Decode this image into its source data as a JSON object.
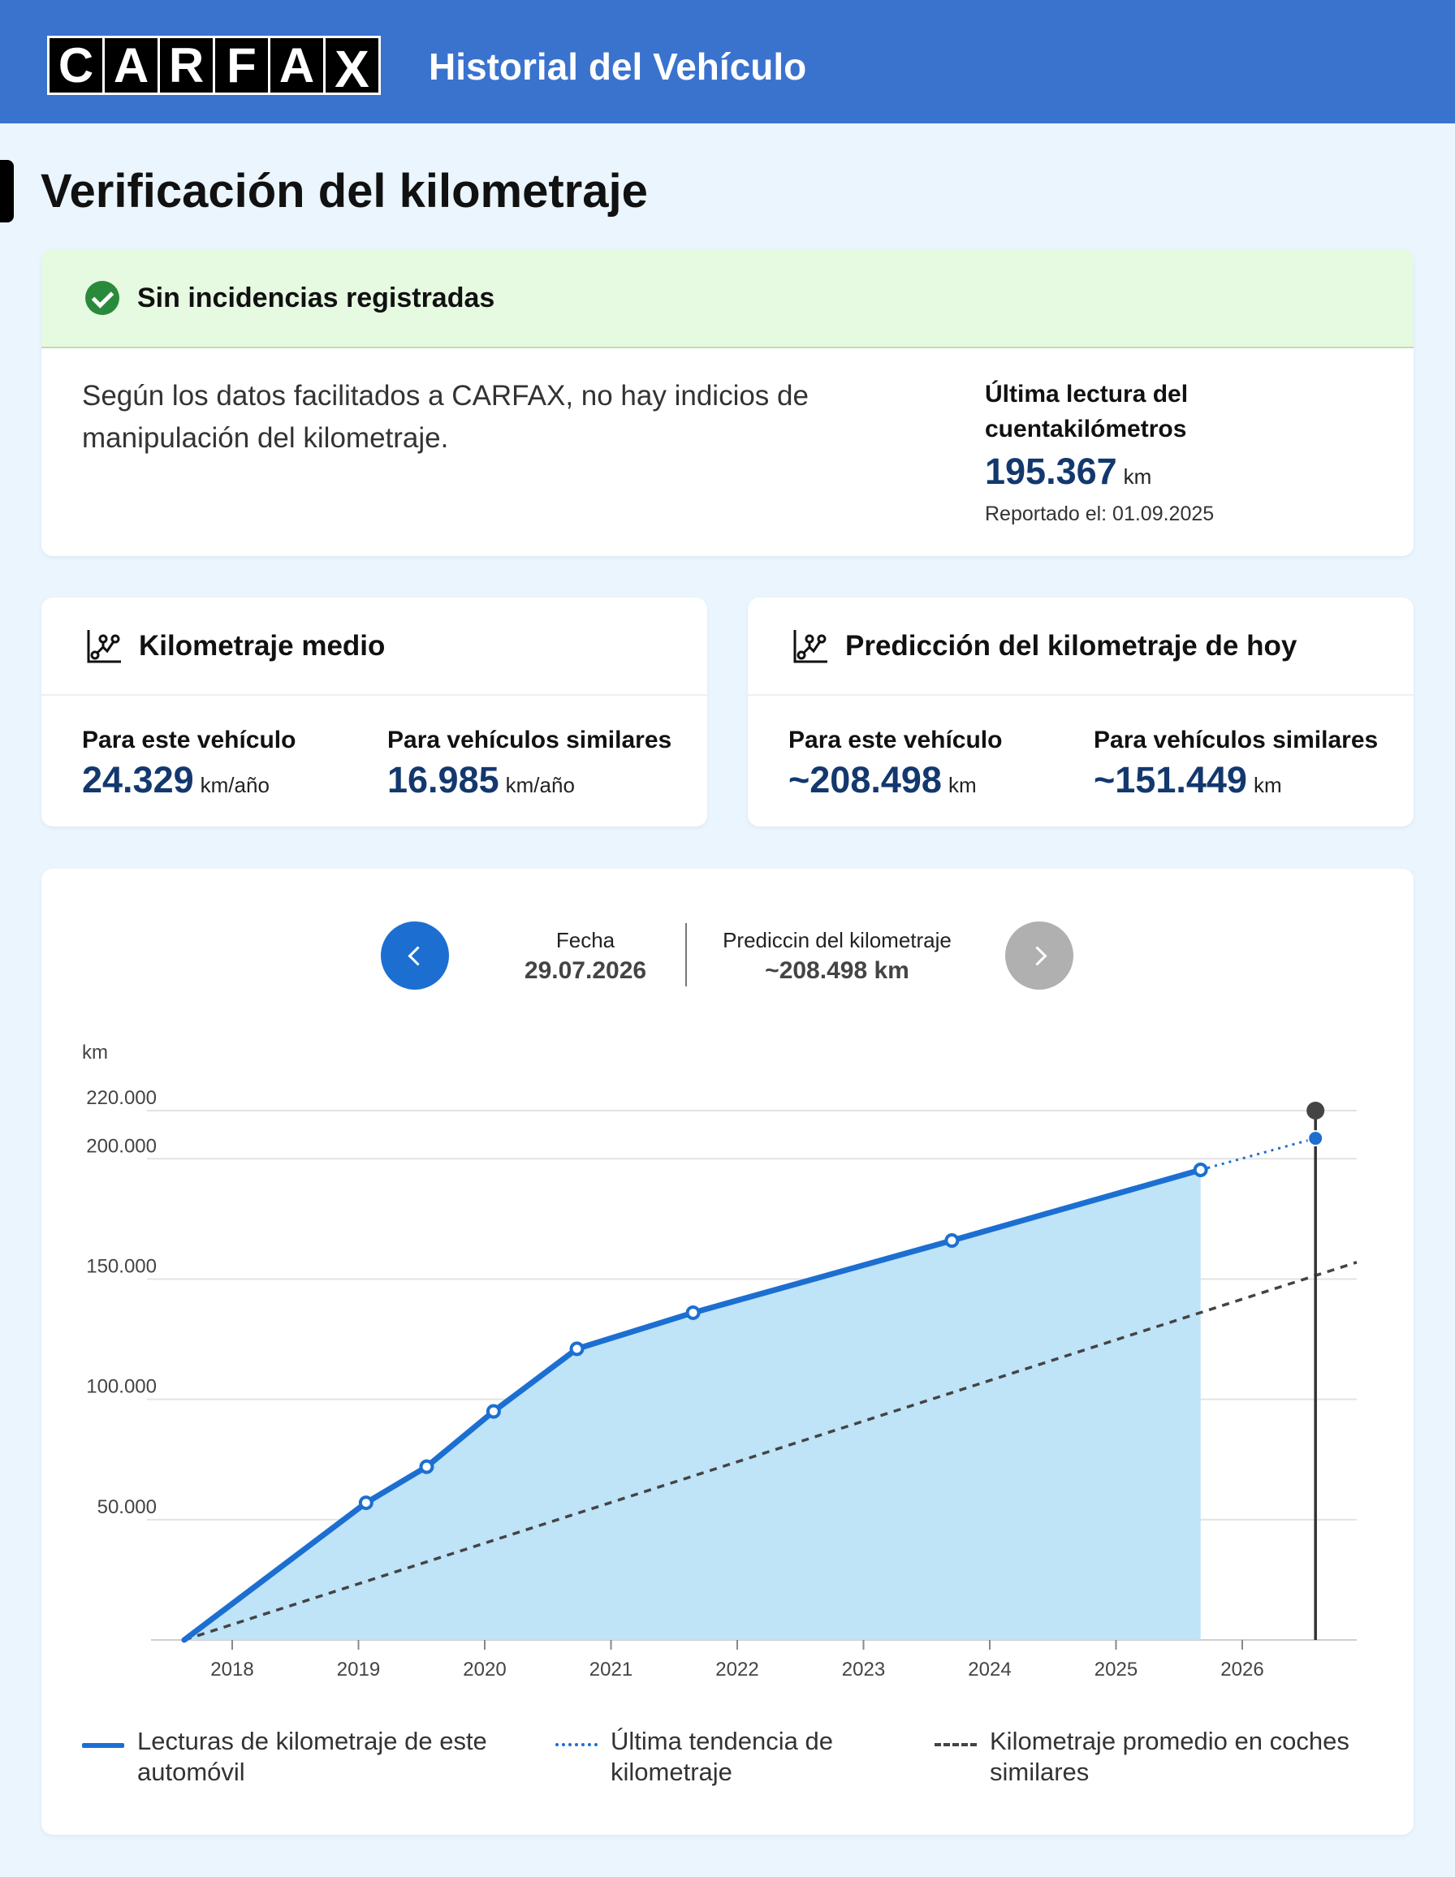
{
  "header": {
    "logo_letters": [
      "C",
      "A",
      "R",
      "F",
      "A",
      "X"
    ],
    "app_title": "Historial del Vehículo",
    "brand_color": "#3a73ce"
  },
  "page_title": "Verificación del kilometraje",
  "status": {
    "title": "Sin incidencias registradas",
    "icon": "check-circle-icon",
    "message": "Según los datos facilitados a CARFAX, no hay indicios de manipulación del kilometraje.",
    "last_reading_label": "Última lectura del cuentakilómetros",
    "last_reading_value": "195.367",
    "last_reading_unit": "km",
    "reported": "Reportado el: 01.09.2025"
  },
  "average": {
    "title": "Kilometraje medio",
    "icon": "mileage-graph-icon",
    "this_label": "Para este vehículo",
    "this_value": "24.329",
    "this_unit": "km/año",
    "similar_label": "Para vehículos similares",
    "similar_value": "16.985",
    "similar_unit": "km/año"
  },
  "prediction": {
    "title": "Predicción del kilometraje de hoy",
    "icon": "mileage-graph-icon",
    "this_label": "Para este vehículo",
    "this_value": "~208.498",
    "this_unit": "km",
    "similar_label": "Para vehículos similares",
    "similar_value": "~151.449",
    "similar_unit": "km"
  },
  "chart_header": {
    "prev_icon": "chevron-left-icon",
    "next_icon": "chevron-right-icon",
    "date_label": "Fecha",
    "date_value": "29.07.2026",
    "pred_label": "Prediccin del kilometraje",
    "pred_value": "~208.498 km"
  },
  "chart_data": {
    "type": "line",
    "ylabel": "km",
    "ylim": [
      0,
      220000
    ],
    "yticks": [
      50000,
      100000,
      150000,
      200000,
      220000
    ],
    "ytick_labels": [
      "50.000",
      "100.000",
      "150.000",
      "200.000",
      "220.000"
    ],
    "xticks": [
      2018,
      2019,
      2020,
      2021,
      2022,
      2023,
      2024,
      2025,
      2026
    ],
    "xtick_labels": [
      "2018",
      "2019",
      "2020",
      "2021",
      "2022",
      "2023",
      "2024",
      "2025",
      "2026"
    ],
    "series": [
      {
        "name": "Lecturas de kilometraje de este automóvil",
        "style": "solid-area",
        "color": "#1c6fd1",
        "points": [
          [
            2017.62,
            0
          ],
          [
            2019.06,
            57000
          ],
          [
            2019.54,
            72000
          ],
          [
            2020.07,
            95000
          ],
          [
            2020.73,
            121000
          ],
          [
            2021.65,
            136000
          ],
          [
            2023.7,
            166000
          ],
          [
            2025.67,
            195367
          ]
        ]
      },
      {
        "name": "Última tendencia de kilometraje",
        "style": "dotted",
        "color": "#1c6fd1",
        "points": [
          [
            2025.67,
            195367
          ],
          [
            2026.58,
            208498
          ]
        ]
      },
      {
        "name": "Kilometraje promedio en coches similares",
        "style": "dashed",
        "color": "#444444",
        "points": [
          [
            2017.62,
            0
          ],
          [
            2026.58,
            151449
          ]
        ]
      }
    ],
    "marker": {
      "date": "29.07.2026",
      "x": 2026.58,
      "value": 208498
    },
    "grid": "horizontal",
    "legend_position": "bottom"
  },
  "legend": {
    "solid": "Lecturas de kilometraje de este automóvil",
    "dotted": "Última tendencia de kilometraje",
    "dashed": "Kilometraje promedio en coches similares"
  }
}
